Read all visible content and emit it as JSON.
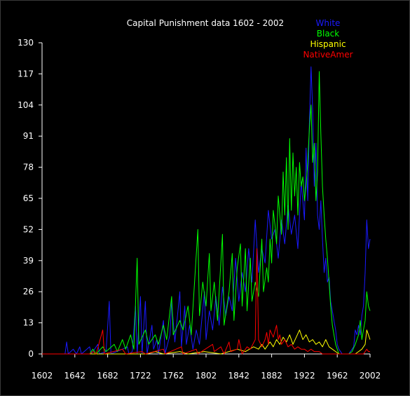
{
  "chart_data": {
    "type": "line",
    "title": "Capital Punishment data 1602 - 2002",
    "xlabel": "",
    "ylabel": "",
    "xlim": [
      1602,
      2002
    ],
    "ylim": [
      0,
      130
    ],
    "x_ticks": [
      "1602",
      "1642",
      "1682",
      "1722",
      "1762",
      "1802",
      "1842",
      "1882",
      "1922",
      "1962",
      "2002"
    ],
    "y_ticks": [
      "0",
      "13",
      "26",
      "39",
      "52",
      "65",
      "78",
      "91",
      "104",
      "117",
      "130"
    ],
    "legend_position": "top-right",
    "grid": false,
    "background": "#000000",
    "axis_color": "#ffffff",
    "series": [
      {
        "name": "White",
        "color": "#1a1aff",
        "points": [
          [
            1602,
            0
          ],
          [
            1630,
            0
          ],
          [
            1632,
            5
          ],
          [
            1634,
            0
          ],
          [
            1640,
            2
          ],
          [
            1644,
            0
          ],
          [
            1648,
            3
          ],
          [
            1650,
            0
          ],
          [
            1660,
            3
          ],
          [
            1662,
            0
          ],
          [
            1670,
            4
          ],
          [
            1672,
            0
          ],
          [
            1680,
            1
          ],
          [
            1684,
            22
          ],
          [
            1686,
            0
          ],
          [
            1700,
            2
          ],
          [
            1706,
            3
          ],
          [
            1708,
            0
          ],
          [
            1712,
            1
          ],
          [
            1716,
            20
          ],
          [
            1718,
            0
          ],
          [
            1722,
            24
          ],
          [
            1724,
            0
          ],
          [
            1728,
            22
          ],
          [
            1730,
            0
          ],
          [
            1736,
            12
          ],
          [
            1738,
            2
          ],
          [
            1742,
            6
          ],
          [
            1744,
            0
          ],
          [
            1750,
            14
          ],
          [
            1752,
            0
          ],
          [
            1758,
            8
          ],
          [
            1760,
            22
          ],
          [
            1764,
            5
          ],
          [
            1770,
            26
          ],
          [
            1772,
            3
          ],
          [
            1776,
            20
          ],
          [
            1778,
            4
          ],
          [
            1782,
            12
          ],
          [
            1786,
            2
          ],
          [
            1790,
            10
          ],
          [
            1794,
            4
          ],
          [
            1800,
            26
          ],
          [
            1802,
            6
          ],
          [
            1806,
            18
          ],
          [
            1810,
            10
          ],
          [
            1814,
            24
          ],
          [
            1818,
            12
          ],
          [
            1822,
            28
          ],
          [
            1826,
            16
          ],
          [
            1830,
            24
          ],
          [
            1834,
            18
          ],
          [
            1838,
            40
          ],
          [
            1842,
            22
          ],
          [
            1846,
            34
          ],
          [
            1850,
            26
          ],
          [
            1854,
            44
          ],
          [
            1858,
            30
          ],
          [
            1862,
            56
          ],
          [
            1866,
            34
          ],
          [
            1870,
            44
          ],
          [
            1874,
            38
          ],
          [
            1878,
            60
          ],
          [
            1882,
            48
          ],
          [
            1886,
            52
          ],
          [
            1890,
            40
          ],
          [
            1894,
            56
          ],
          [
            1898,
            46
          ],
          [
            1902,
            62
          ],
          [
            1906,
            50
          ],
          [
            1910,
            58
          ],
          [
            1914,
            44
          ],
          [
            1918,
            72
          ],
          [
            1922,
            56
          ],
          [
            1924,
            86
          ],
          [
            1926,
            64
          ],
          [
            1928,
            96
          ],
          [
            1930,
            120
          ],
          [
            1932,
            102
          ],
          [
            1934,
            70
          ],
          [
            1936,
            88
          ],
          [
            1938,
            58
          ],
          [
            1940,
            52
          ],
          [
            1942,
            64
          ],
          [
            1944,
            48
          ],
          [
            1946,
            34
          ],
          [
            1948,
            40
          ],
          [
            1950,
            30
          ],
          [
            1952,
            32
          ],
          [
            1954,
            22
          ],
          [
            1956,
            18
          ],
          [
            1958,
            14
          ],
          [
            1960,
            10
          ],
          [
            1962,
            4
          ],
          [
            1964,
            2
          ],
          [
            1966,
            1
          ],
          [
            1968,
            0
          ],
          [
            1976,
            0
          ],
          [
            1978,
            1
          ],
          [
            1980,
            2
          ],
          [
            1982,
            3
          ],
          [
            1984,
            10
          ],
          [
            1986,
            8
          ],
          [
            1988,
            12
          ],
          [
            1990,
            8
          ],
          [
            1992,
            16
          ],
          [
            1994,
            20
          ],
          [
            1996,
            34
          ],
          [
            1998,
            56
          ],
          [
            2000,
            44
          ],
          [
            2002,
            48
          ]
        ]
      },
      {
        "name": "Black",
        "color": "#00ff00",
        "points": [
          [
            1602,
            0
          ],
          [
            1660,
            0
          ],
          [
            1664,
            2
          ],
          [
            1668,
            0
          ],
          [
            1676,
            3
          ],
          [
            1680,
            1
          ],
          [
            1690,
            4
          ],
          [
            1694,
            1
          ],
          [
            1700,
            6
          ],
          [
            1704,
            2
          ],
          [
            1710,
            8
          ],
          [
            1714,
            2
          ],
          [
            1718,
            40
          ],
          [
            1720,
            4
          ],
          [
            1728,
            10
          ],
          [
            1732,
            4
          ],
          [
            1740,
            8
          ],
          [
            1744,
            4
          ],
          [
            1750,
            12
          ],
          [
            1754,
            6
          ],
          [
            1760,
            24
          ],
          [
            1762,
            8
          ],
          [
            1770,
            14
          ],
          [
            1774,
            10
          ],
          [
            1780,
            20
          ],
          [
            1784,
            8
          ],
          [
            1792,
            52
          ],
          [
            1794,
            16
          ],
          [
            1798,
            30
          ],
          [
            1802,
            20
          ],
          [
            1806,
            42
          ],
          [
            1808,
            18
          ],
          [
            1812,
            30
          ],
          [
            1816,
            14
          ],
          [
            1822,
            50
          ],
          [
            1824,
            12
          ],
          [
            1830,
            26
          ],
          [
            1834,
            42
          ],
          [
            1836,
            14
          ],
          [
            1840,
            36
          ],
          [
            1844,
            46
          ],
          [
            1846,
            20
          ],
          [
            1850,
            44
          ],
          [
            1852,
            18
          ],
          [
            1856,
            40
          ],
          [
            1858,
            22
          ],
          [
            1862,
            30
          ],
          [
            1866,
            24
          ],
          [
            1870,
            48
          ],
          [
            1872,
            26
          ],
          [
            1876,
            36
          ],
          [
            1878,
            30
          ],
          [
            1880,
            48
          ],
          [
            1882,
            38
          ],
          [
            1884,
            60
          ],
          [
            1886,
            54
          ],
          [
            1888,
            46
          ],
          [
            1890,
            66
          ],
          [
            1894,
            50
          ],
          [
            1896,
            76
          ],
          [
            1898,
            58
          ],
          [
            1900,
            82
          ],
          [
            1902,
            52
          ],
          [
            1904,
            90
          ],
          [
            1906,
            60
          ],
          [
            1908,
            84
          ],
          [
            1910,
            66
          ],
          [
            1912,
            78
          ],
          [
            1914,
            58
          ],
          [
            1916,
            80
          ],
          [
            1918,
            70
          ],
          [
            1920,
            74
          ],
          [
            1922,
            64
          ],
          [
            1924,
            70
          ],
          [
            1926,
            80
          ],
          [
            1928,
            94
          ],
          [
            1930,
            104
          ],
          [
            1932,
            80
          ],
          [
            1934,
            88
          ],
          [
            1936,
            64
          ],
          [
            1938,
            76
          ],
          [
            1940,
            118
          ],
          [
            1942,
            92
          ],
          [
            1944,
            70
          ],
          [
            1946,
            58
          ],
          [
            1948,
            48
          ],
          [
            1950,
            40
          ],
          [
            1952,
            30
          ],
          [
            1954,
            20
          ],
          [
            1956,
            12
          ],
          [
            1958,
            8
          ],
          [
            1960,
            4
          ],
          [
            1962,
            2
          ],
          [
            1964,
            0
          ],
          [
            1976,
            0
          ],
          [
            1980,
            1
          ],
          [
            1984,
            4
          ],
          [
            1988,
            8
          ],
          [
            1990,
            14
          ],
          [
            1992,
            6
          ],
          [
            1994,
            10
          ],
          [
            1996,
            14
          ],
          [
            1998,
            26
          ],
          [
            2000,
            20
          ],
          [
            2002,
            18
          ]
        ]
      },
      {
        "name": "Hispanic",
        "color": "#ffff00",
        "points": [
          [
            1602,
            0
          ],
          [
            1730,
            0
          ],
          [
            1740,
            1
          ],
          [
            1750,
            0
          ],
          [
            1770,
            1
          ],
          [
            1780,
            0
          ],
          [
            1800,
            1
          ],
          [
            1820,
            0
          ],
          [
            1840,
            2
          ],
          [
            1850,
            1
          ],
          [
            1860,
            3
          ],
          [
            1866,
            2
          ],
          [
            1870,
            4
          ],
          [
            1874,
            2
          ],
          [
            1880,
            5
          ],
          [
            1884,
            3
          ],
          [
            1888,
            6
          ],
          [
            1892,
            4
          ],
          [
            1896,
            7
          ],
          [
            1900,
            5
          ],
          [
            1904,
            8
          ],
          [
            1908,
            4
          ],
          [
            1912,
            7
          ],
          [
            1916,
            10
          ],
          [
            1920,
            6
          ],
          [
            1924,
            8
          ],
          [
            1928,
            5
          ],
          [
            1932,
            6
          ],
          [
            1936,
            4
          ],
          [
            1940,
            5
          ],
          [
            1944,
            3
          ],
          [
            1948,
            6
          ],
          [
            1952,
            3
          ],
          [
            1956,
            2
          ],
          [
            1960,
            1
          ],
          [
            1964,
            0
          ],
          [
            1984,
            0
          ],
          [
            1988,
            1
          ],
          [
            1992,
            2
          ],
          [
            1996,
            4
          ],
          [
            1998,
            10
          ],
          [
            2000,
            8
          ],
          [
            2002,
            6
          ]
        ]
      },
      {
        "name": "NativeAmer",
        "color": "#ff0000",
        "points": [
          [
            1602,
            0
          ],
          [
            1660,
            0
          ],
          [
            1664,
            1
          ],
          [
            1668,
            0
          ],
          [
            1676,
            10
          ],
          [
            1678,
            0
          ],
          [
            1700,
            2
          ],
          [
            1704,
            0
          ],
          [
            1724,
            1
          ],
          [
            1728,
            0
          ],
          [
            1750,
            2
          ],
          [
            1752,
            0
          ],
          [
            1772,
            3
          ],
          [
            1774,
            0
          ],
          [
            1790,
            2
          ],
          [
            1792,
            0
          ],
          [
            1810,
            4
          ],
          [
            1812,
            1
          ],
          [
            1820,
            3
          ],
          [
            1824,
            0
          ],
          [
            1830,
            5
          ],
          [
            1832,
            1
          ],
          [
            1840,
            2
          ],
          [
            1842,
            6
          ],
          [
            1846,
            0
          ],
          [
            1852,
            3
          ],
          [
            1856,
            2
          ],
          [
            1862,
            6
          ],
          [
            1864,
            44
          ],
          [
            1866,
            6
          ],
          [
            1870,
            3
          ],
          [
            1874,
            6
          ],
          [
            1876,
            9
          ],
          [
            1878,
            4
          ],
          [
            1880,
            10
          ],
          [
            1884,
            7
          ],
          [
            1888,
            12
          ],
          [
            1890,
            6
          ],
          [
            1892,
            8
          ],
          [
            1894,
            4
          ],
          [
            1898,
            6
          ],
          [
            1902,
            3
          ],
          [
            1906,
            4
          ],
          [
            1910,
            2
          ],
          [
            1914,
            3
          ],
          [
            1918,
            2
          ],
          [
            1922,
            2
          ],
          [
            1926,
            1
          ],
          [
            1930,
            2
          ],
          [
            1934,
            1
          ],
          [
            1940,
            1
          ],
          [
            1944,
            0
          ],
          [
            1994,
            0
          ],
          [
            1998,
            2
          ],
          [
            2000,
            1
          ],
          [
            2002,
            1
          ]
        ]
      }
    ]
  }
}
